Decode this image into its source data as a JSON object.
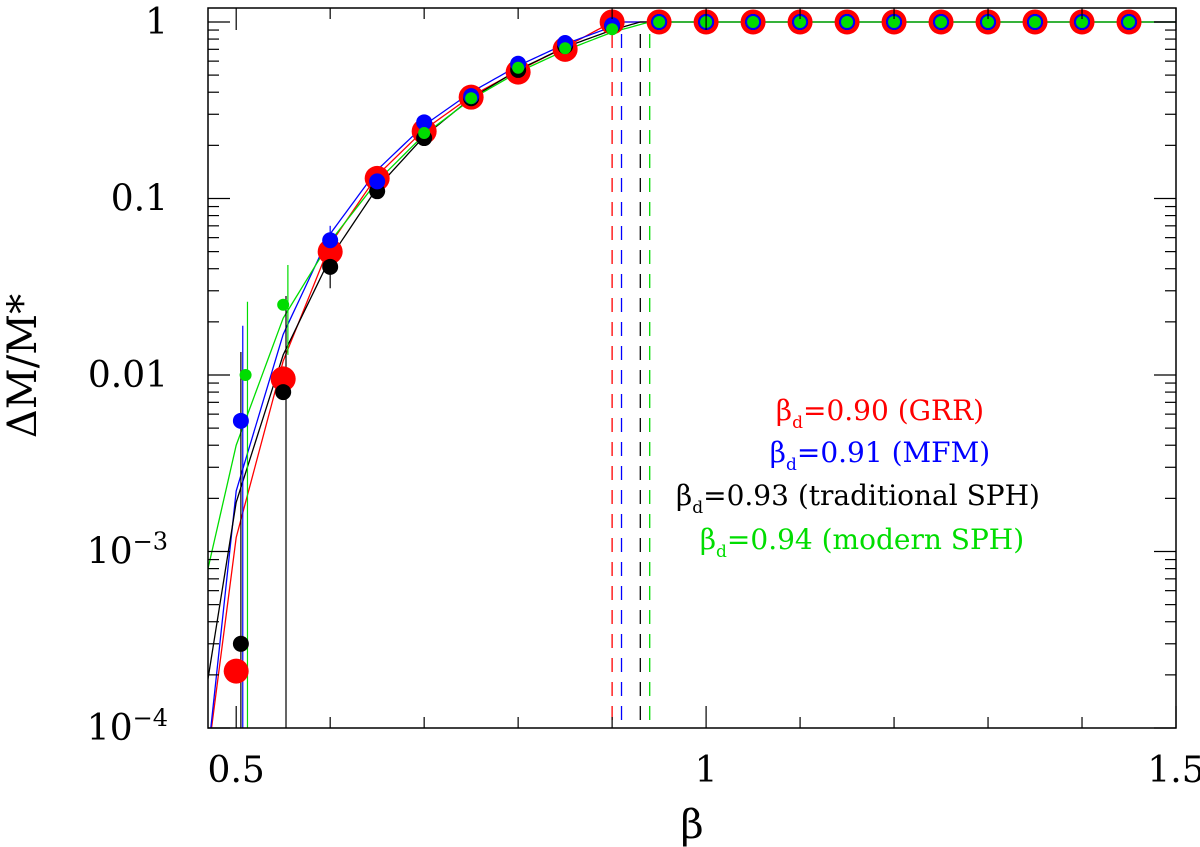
{
  "chart_data": {
    "type": "scatter",
    "title": "",
    "xlabel": "β",
    "ylabel": "ΔM/M*",
    "xlim": [
      0.47,
      1.5
    ],
    "ylim": [
      0.0001,
      1.2
    ],
    "yscale": "log",
    "x_ticks": [
      {
        "value": 0.5,
        "label": "0.5"
      },
      {
        "value": 1,
        "label": "1"
      },
      {
        "value": 1.5,
        "label": "1.5"
      }
    ],
    "y_ticks": [
      {
        "value": 0.0001,
        "base": "10",
        "exp": "−4"
      },
      {
        "value": 0.001,
        "base": "10",
        "exp": "−3"
      },
      {
        "value": 0.01,
        "label": "0.01"
      },
      {
        "value": 0.1,
        "label": "0.1"
      },
      {
        "value": 1,
        "label": "1"
      }
    ],
    "series": [
      {
        "name": "GRR",
        "color": "#ff0000",
        "beta_d": 0.9,
        "legend": {
          "prefix": "β",
          "sub": "d",
          "rest": "=0.90 (GRR)"
        },
        "points": [
          [
            0.5,
            0.00021
          ],
          [
            0.55,
            0.0095
          ],
          [
            0.6,
            0.05
          ],
          [
            0.65,
            0.13
          ],
          [
            0.7,
            0.24
          ],
          [
            0.75,
            0.375
          ],
          [
            0.8,
            0.52
          ],
          [
            0.85,
            0.7
          ],
          [
            0.9,
            1.0
          ],
          [
            0.95,
            1.0
          ],
          [
            1.0,
            1.0
          ],
          [
            1.05,
            1.0
          ],
          [
            1.1,
            1.0
          ],
          [
            1.15,
            1.0
          ],
          [
            1.2,
            1.0
          ],
          [
            1.25,
            1.0
          ],
          [
            1.3,
            1.0
          ],
          [
            1.35,
            1.0
          ],
          [
            1.4,
            1.0
          ],
          [
            1.45,
            1.0
          ]
        ],
        "fit": [
          [
            0.47,
            7e-05
          ],
          [
            0.5,
            0.0012
          ],
          [
            0.55,
            0.012
          ],
          [
            0.6,
            0.055
          ],
          [
            0.65,
            0.135
          ],
          [
            0.7,
            0.245
          ],
          [
            0.75,
            0.38
          ],
          [
            0.8,
            0.53
          ],
          [
            0.85,
            0.72
          ],
          [
            0.9,
            1.0
          ],
          [
            1.5,
            1.0
          ]
        ]
      },
      {
        "name": "MFM",
        "color": "#0000ff",
        "beta_d": 0.91,
        "legend": {
          "prefix": "β",
          "sub": "d",
          "rest": "=0.91 (MFM)"
        },
        "points": [
          [
            0.505,
            0.0055
          ],
          [
            0.6,
            0.058
          ],
          [
            0.65,
            0.125
          ],
          [
            0.7,
            0.27
          ],
          [
            0.75,
            0.38
          ],
          [
            0.8,
            0.58
          ],
          [
            0.85,
            0.76
          ],
          [
            0.9,
            0.96
          ],
          [
            0.95,
            1.0
          ],
          [
            1.0,
            1.0
          ],
          [
            1.05,
            1.0
          ],
          [
            1.1,
            1.0
          ],
          [
            1.15,
            1.0
          ],
          [
            1.2,
            1.0
          ],
          [
            1.25,
            1.0
          ],
          [
            1.3,
            1.0
          ],
          [
            1.35,
            1.0
          ],
          [
            1.4,
            1.0
          ],
          [
            1.45,
            1.0
          ]
        ],
        "fit": [
          [
            0.473,
            0.0001
          ],
          [
            0.5,
            0.0022
          ],
          [
            0.55,
            0.017
          ],
          [
            0.6,
            0.063
          ],
          [
            0.65,
            0.145
          ],
          [
            0.7,
            0.26
          ],
          [
            0.75,
            0.4
          ],
          [
            0.8,
            0.565
          ],
          [
            0.85,
            0.75
          ],
          [
            0.9,
            0.94
          ],
          [
            0.91,
            1.0
          ],
          [
            1.5,
            1.0
          ]
        ]
      },
      {
        "name": "traditional SPH",
        "color": "#000000",
        "beta_d": 0.93,
        "legend": {
          "prefix": "β",
          "sub": "d",
          "rest": "=0.93 (traditional SPH)"
        },
        "points": [
          [
            0.505,
            0.0003
          ],
          [
            0.55,
            0.008
          ],
          [
            0.6,
            0.041
          ],
          [
            0.65,
            0.11
          ],
          [
            0.7,
            0.22
          ],
          [
            0.75,
            0.37
          ],
          [
            0.8,
            0.535
          ],
          [
            0.85,
            0.73
          ],
          [
            0.9,
            0.95
          ],
          [
            0.95,
            1.0
          ],
          [
            1.0,
            1.0
          ],
          [
            1.05,
            1.0
          ],
          [
            1.1,
            1.0
          ],
          [
            1.15,
            1.0
          ],
          [
            1.2,
            1.0
          ],
          [
            1.25,
            1.0
          ],
          [
            1.3,
            1.0
          ],
          [
            1.35,
            1.0
          ],
          [
            1.4,
            1.0
          ],
          [
            1.45,
            1.0
          ]
        ],
        "fit": [
          [
            0.47,
            0.00019
          ],
          [
            0.5,
            0.0019
          ],
          [
            0.55,
            0.013
          ],
          [
            0.6,
            0.046
          ],
          [
            0.65,
            0.115
          ],
          [
            0.7,
            0.225
          ],
          [
            0.75,
            0.37
          ],
          [
            0.8,
            0.535
          ],
          [
            0.85,
            0.72
          ],
          [
            0.9,
            0.9
          ],
          [
            0.93,
            1.0
          ],
          [
            1.5,
            1.0
          ]
        ]
      },
      {
        "name": "modern SPH",
        "color": "#00dd00",
        "beta_d": 0.94,
        "legend": {
          "prefix": "β",
          "sub": "d",
          "rest": "=0.94 (modern SPH)"
        },
        "points": [
          [
            0.51,
            0.01
          ],
          [
            0.55,
            0.025
          ],
          [
            0.7,
            0.235
          ],
          [
            0.75,
            0.37
          ],
          [
            0.8,
            0.55
          ],
          [
            0.85,
            0.71
          ],
          [
            0.9,
            0.91
          ],
          [
            0.95,
            1.0
          ],
          [
            1.0,
            1.0
          ],
          [
            1.05,
            1.0
          ],
          [
            1.1,
            1.0
          ],
          [
            1.15,
            1.0
          ],
          [
            1.2,
            1.0
          ],
          [
            1.25,
            1.0
          ],
          [
            1.3,
            1.0
          ],
          [
            1.35,
            1.0
          ],
          [
            1.4,
            1.0
          ],
          [
            1.45,
            1.0
          ]
        ],
        "fit": [
          [
            0.47,
            0.0008
          ],
          [
            0.5,
            0.004
          ],
          [
            0.55,
            0.021
          ],
          [
            0.6,
            0.057
          ],
          [
            0.65,
            0.125
          ],
          [
            0.7,
            0.23
          ],
          [
            0.75,
            0.365
          ],
          [
            0.8,
            0.52
          ],
          [
            0.85,
            0.69
          ],
          [
            0.9,
            0.875
          ],
          [
            0.94,
            1.0
          ],
          [
            1.5,
            1.0
          ]
        ]
      }
    ],
    "error_bars": [
      {
        "series": "traditional SPH",
        "x": 0.505,
        "y_low": 0.0001,
        "y_high": 0.0135
      },
      {
        "series": "MFM",
        "x": 0.507,
        "y_low": 0.0001,
        "y_high": 0.019
      },
      {
        "series": "modern SPH",
        "x": 0.512,
        "y_low": 0.0001,
        "y_high": 0.026
      },
      {
        "series": "traditional SPH",
        "x": 0.553,
        "y_low": 0.0001,
        "y_high": 0.028
      },
      {
        "series": "modern SPH",
        "x": 0.555,
        "y_low": 0.013,
        "y_high": 0.042
      },
      {
        "series": "traditional SPH",
        "x": 0.6,
        "y_low": 0.031,
        "y_high": 0.06
      },
      {
        "series": "MFM",
        "x": 0.6,
        "y_low": 0.046,
        "y_high": 0.07
      }
    ],
    "threshold_lines": [
      {
        "series": "GRR",
        "x": 0.9
      },
      {
        "series": "MFM",
        "x": 0.91
      },
      {
        "series": "traditional SPH",
        "x": 0.93
      },
      {
        "series": "modern SPH",
        "x": 0.94
      }
    ]
  }
}
